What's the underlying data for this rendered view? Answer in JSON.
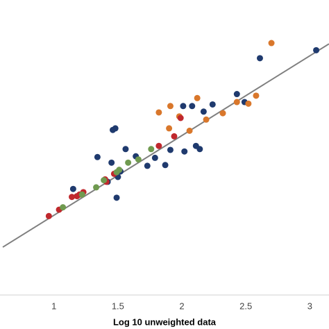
{
  "chart_data": {
    "type": "scatter",
    "x_label": "Log 10 unweighted data",
    "xlim": [
      0.6,
      3.15
    ],
    "xticks": [
      1,
      1.5,
      2,
      2.5,
      3
    ],
    "ylim": [
      0,
      3.7
    ],
    "grid": false,
    "fit_line": {
      "color": "#7f7f7f",
      "x": [
        0.6,
        3.15
      ],
      "y": [
        0.6,
        3.15
      ]
    },
    "series": [
      {
        "color": "#1f3a6e",
        "x": [
          3.05,
          2.61,
          2.43,
          2.49,
          2.24,
          2.01,
          2.08,
          2.17,
          1.48,
          1.46,
          1.56,
          1.34,
          1.91,
          2.02,
          2.11,
          2.14,
          1.79,
          1.87,
          1.73,
          1.64,
          1.52,
          1.45,
          1.5,
          1.42,
          1.15,
          1.49
        ],
        "values": [
          3.07,
          2.97,
          2.52,
          2.42,
          2.39,
          2.37,
          2.37,
          2.3,
          2.09,
          2.07,
          1.83,
          1.73,
          1.82,
          1.8,
          1.87,
          1.83,
          1.72,
          1.63,
          1.62,
          1.74,
          1.55,
          1.66,
          1.48,
          1.42,
          1.33,
          1.22
        ]
      },
      {
        "color": "#d9772b",
        "x": [
          2.7,
          2.58,
          2.52,
          2.43,
          2.12,
          1.91,
          1.82,
          1.98,
          2.32,
          2.19,
          1.9,
          2.06
        ],
        "values": [
          3.16,
          2.5,
          2.4,
          2.42,
          2.47,
          2.37,
          2.29,
          2.24,
          2.28,
          2.2,
          2.09,
          2.06
        ]
      },
      {
        "color": "#c0282d",
        "x": [
          1.82,
          1.94,
          1.99,
          0.96,
          1.04,
          1.14,
          1.18,
          1.2,
          1.23,
          1.4,
          1.47,
          1.41
        ],
        "values": [
          1.87,
          1.99,
          2.22,
          0.99,
          1.07,
          1.23,
          1.24,
          1.26,
          1.29,
          1.45,
          1.52,
          1.42
        ]
      },
      {
        "color": "#6f9a4f",
        "x": [
          1.76,
          1.66,
          1.58,
          1.51,
          1.39,
          1.33,
          1.07,
          1.22,
          1.49
        ],
        "values": [
          1.83,
          1.7,
          1.66,
          1.57,
          1.44,
          1.35,
          1.1,
          1.26,
          1.54
        ]
      }
    ]
  }
}
